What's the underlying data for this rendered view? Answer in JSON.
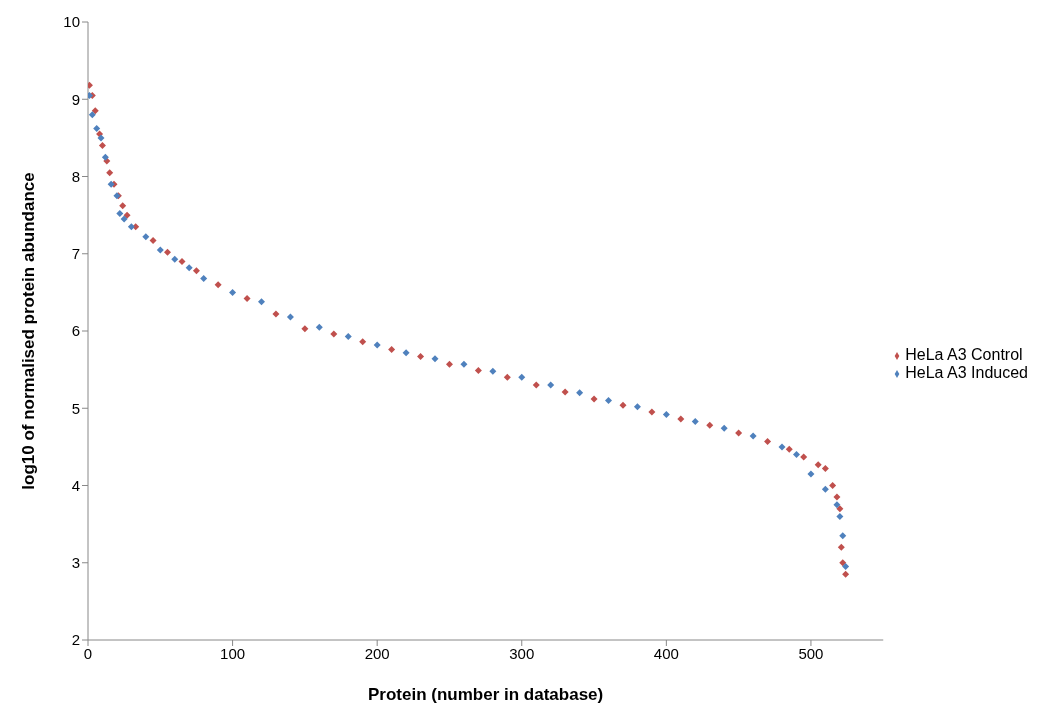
{
  "chart_data": {
    "type": "scatter",
    "xlabel": "Protein (number in database)",
    "ylabel": "log10 of normalised protein abundance",
    "xlim": [
      0,
      550
    ],
    "xticks": [
      0,
      100,
      200,
      300,
      400,
      500
    ],
    "ylim": [
      2,
      10
    ],
    "yticks": [
      2,
      3,
      4,
      5,
      6,
      7,
      8,
      9,
      10
    ],
    "grid": false,
    "legend": "right",
    "marker": "diamond",
    "series": [
      {
        "name": "HeLa A3 Control",
        "color": "#c0504d",
        "x": [
          1,
          3,
          5,
          8,
          10,
          13,
          15,
          18,
          21,
          24,
          27,
          33,
          45,
          55,
          65,
          75,
          90,
          110,
          130,
          150,
          170,
          190,
          210,
          230,
          250,
          270,
          290,
          310,
          330,
          350,
          370,
          390,
          410,
          430,
          450,
          470,
          485,
          495,
          505,
          510,
          515,
          518,
          520,
          521,
          522,
          524
        ],
        "values": [
          9.18,
          9.05,
          8.85,
          8.55,
          8.4,
          8.2,
          8.05,
          7.9,
          7.75,
          7.62,
          7.5,
          7.35,
          7.17,
          7.02,
          6.9,
          6.78,
          6.6,
          6.42,
          6.22,
          6.03,
          5.96,
          5.86,
          5.76,
          5.67,
          5.57,
          5.49,
          5.4,
          5.3,
          5.21,
          5.12,
          5.04,
          4.95,
          4.86,
          4.78,
          4.68,
          4.57,
          4.47,
          4.37,
          4.27,
          4.22,
          4.0,
          3.85,
          3.7,
          3.2,
          3.0,
          2.85
        ]
      },
      {
        "name": "HeLa A3 Induced",
        "color": "#4f81bd",
        "x": [
          1,
          3,
          6,
          9,
          12,
          16,
          20,
          22,
          25,
          30,
          40,
          50,
          60,
          70,
          80,
          100,
          120,
          140,
          160,
          180,
          200,
          220,
          240,
          260,
          280,
          300,
          320,
          340,
          360,
          380,
          400,
          420,
          440,
          460,
          480,
          490,
          500,
          510,
          518,
          520,
          522,
          524
        ],
        "values": [
          9.05,
          8.8,
          8.62,
          8.5,
          8.25,
          7.9,
          7.75,
          7.52,
          7.45,
          7.35,
          7.22,
          7.05,
          6.93,
          6.82,
          6.68,
          6.5,
          6.38,
          6.18,
          6.05,
          5.93,
          5.82,
          5.72,
          5.64,
          5.57,
          5.48,
          5.4,
          5.3,
          5.2,
          5.1,
          5.02,
          4.92,
          4.83,
          4.74,
          4.64,
          4.5,
          4.4,
          4.15,
          3.95,
          3.75,
          3.6,
          3.35,
          2.95
        ]
      }
    ]
  }
}
